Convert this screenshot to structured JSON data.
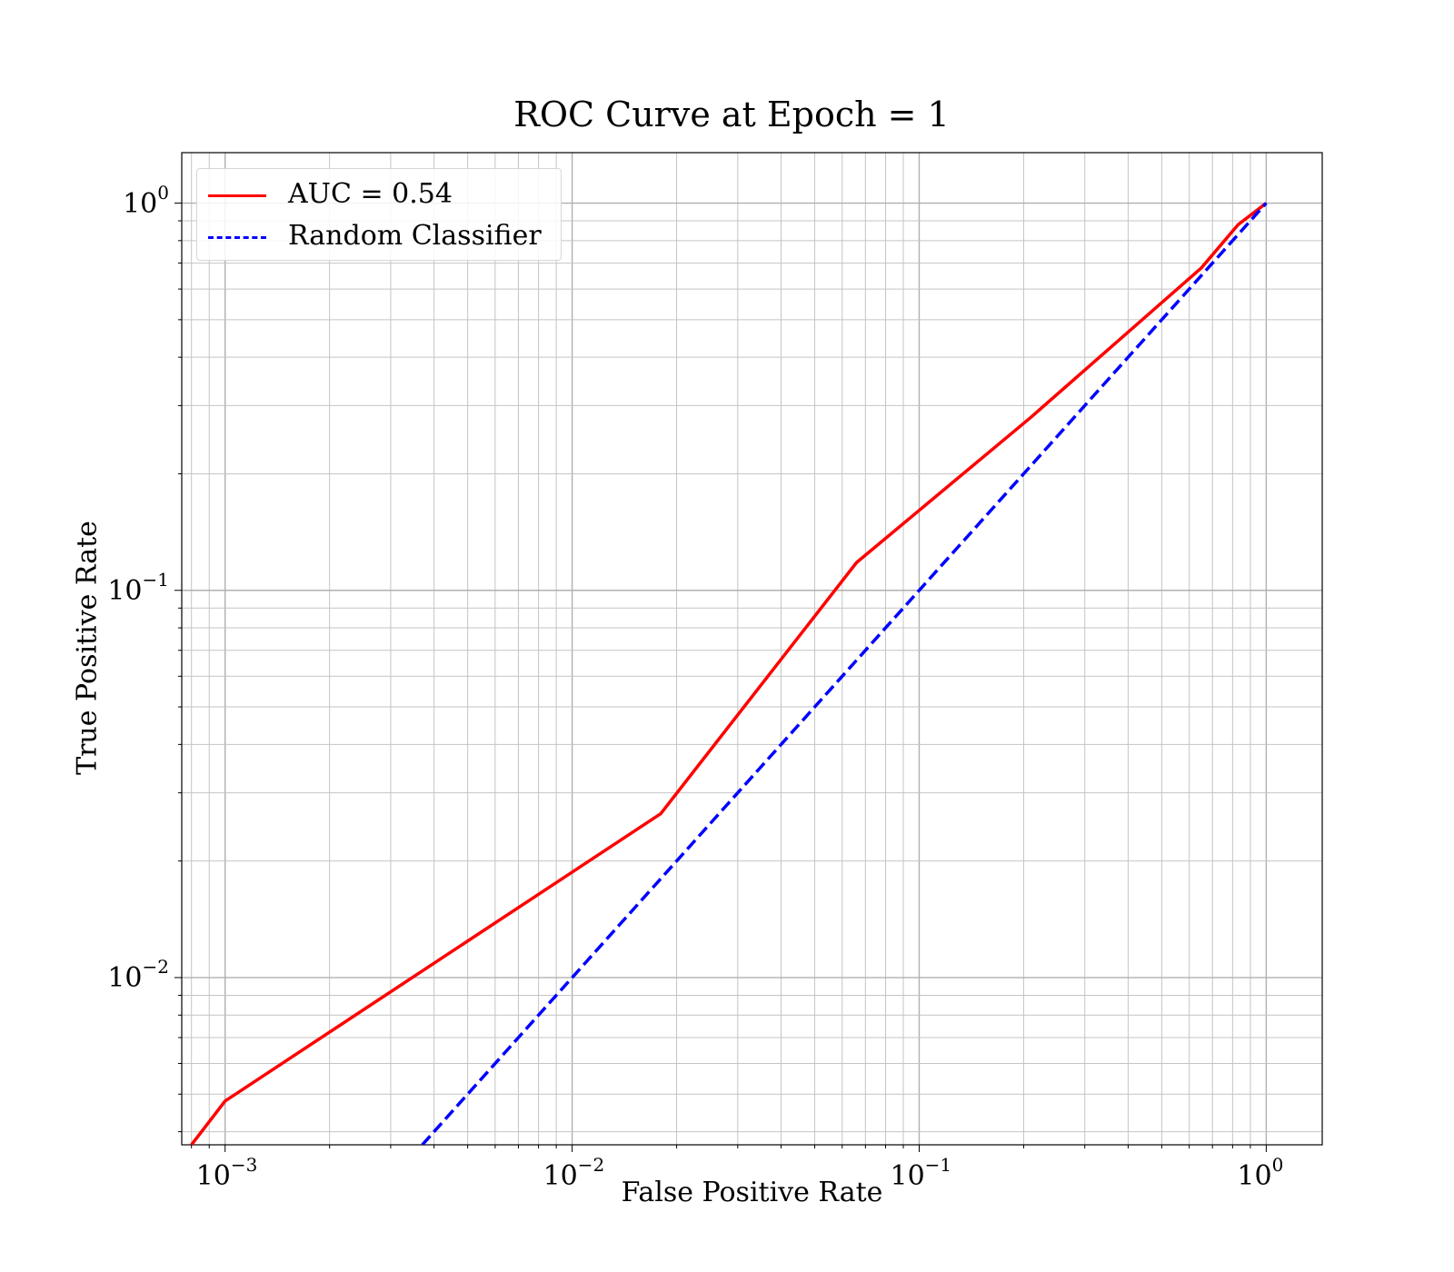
{
  "chart_data": {
    "type": "line",
    "title": "ROC Curve at Epoch = 1",
    "xlabel": "False Positive Rate",
    "ylabel": "True Positive Rate",
    "xscale": "log",
    "yscale": "log",
    "xlim": [
      0.00075,
      1.45
    ],
    "ylim": [
      0.0037,
      1.35
    ],
    "grid": "major and minor",
    "legend_position": "top-left",
    "x_ticks": [
      {
        "base": "10",
        "exp": "−3"
      },
      {
        "base": "10",
        "exp": "−2"
      },
      {
        "base": "10",
        "exp": "−1"
      },
      {
        "base": "10",
        "exp": "0"
      }
    ],
    "y_ticks": [
      {
        "base": "10",
        "exp": "−2"
      },
      {
        "base": "10",
        "exp": "−1"
      },
      {
        "base": "10",
        "exp": "0"
      }
    ],
    "series": [
      {
        "name": "AUC = 0.54",
        "color": "#ff0000",
        "style": "solid",
        "x": [
          0.0008,
          0.001,
          0.018,
          0.066,
          0.21,
          0.65,
          0.83,
          1.0
        ],
        "y": [
          0.0037,
          0.0048,
          0.0265,
          0.118,
          0.28,
          0.68,
          0.88,
          1.0
        ]
      },
      {
        "name": "Random Classifier",
        "color": "#0000ff",
        "style": "dashed",
        "x": [
          0.0037,
          1.0
        ],
        "y": [
          0.0037,
          1.0
        ]
      }
    ]
  }
}
